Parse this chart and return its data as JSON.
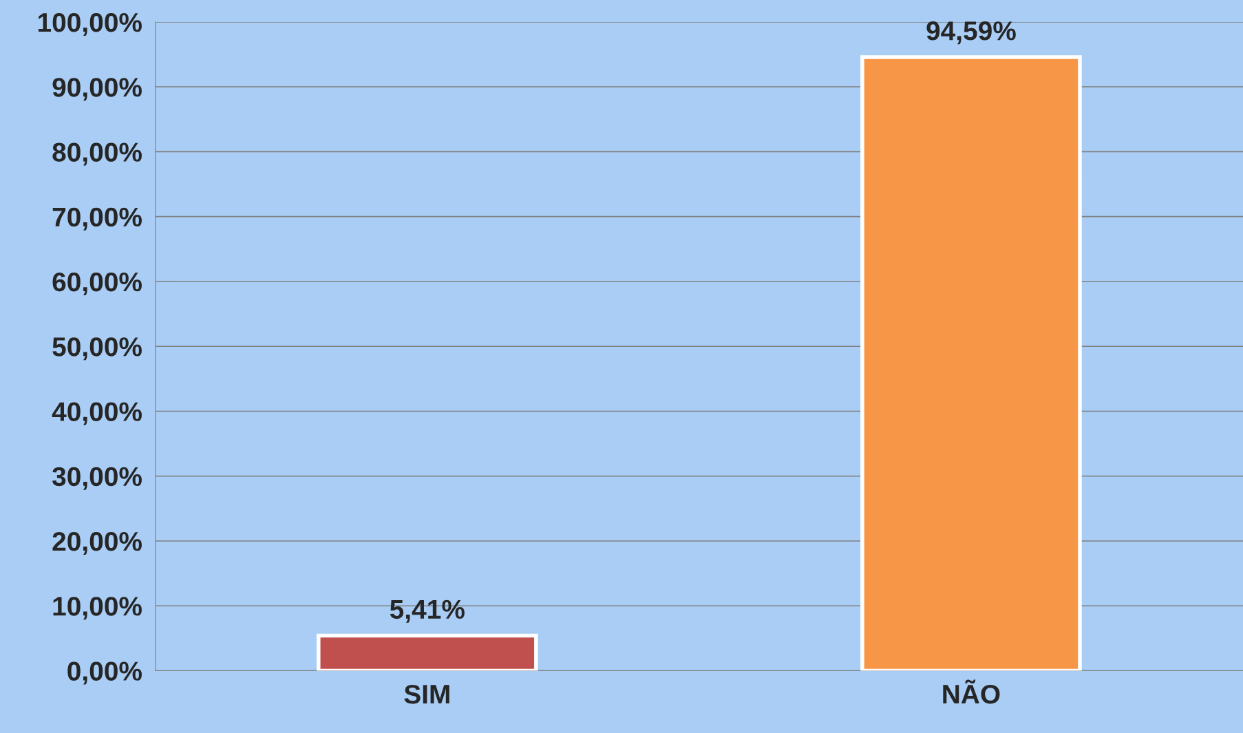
{
  "chart_data": {
    "type": "bar",
    "categories": [
      "SIM",
      "NÃO"
    ],
    "values": [
      5.41,
      94.59
    ],
    "colors": [
      "#c0504d",
      "#f79646"
    ],
    "value_labels": [
      "5,41%",
      "94,59%"
    ],
    "ylim": [
      0,
      100
    ],
    "yticks": [
      {
        "value": 0,
        "label": "0,00%"
      },
      {
        "value": 10,
        "label": "10,00%"
      },
      {
        "value": 20,
        "label": "20,00%"
      },
      {
        "value": 30,
        "label": "30,00%"
      },
      {
        "value": 40,
        "label": "40,00%"
      },
      {
        "value": 50,
        "label": "50,00%"
      },
      {
        "value": 60,
        "label": "60,00%"
      },
      {
        "value": 70,
        "label": "70,00%"
      },
      {
        "value": 80,
        "label": "80,00%"
      },
      {
        "value": 90,
        "label": "90,00%"
      },
      {
        "value": 100,
        "label": "100,00%"
      }
    ],
    "grid": "y",
    "legend": false
  }
}
